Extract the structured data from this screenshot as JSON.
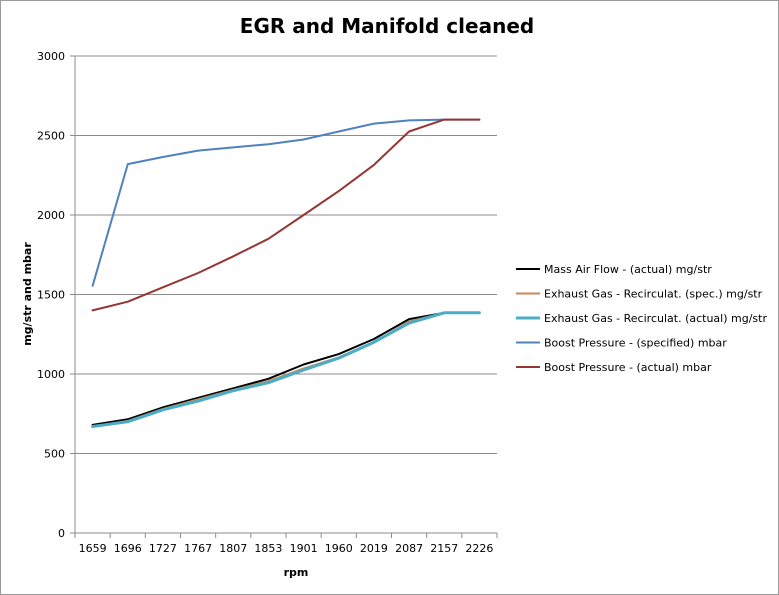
{
  "chart_data": {
    "type": "line",
    "title": "EGR and Manifold cleaned",
    "xlabel": "rpm",
    "ylabel": "mg/str and mbar",
    "categories": [
      "1659",
      "1696",
      "1727",
      "1767",
      "1807",
      "1853",
      "1901",
      "1960",
      "2019",
      "2087",
      "2157",
      "2226"
    ],
    "ylim": [
      0,
      3000
    ],
    "yticks": [
      0,
      500,
      1000,
      1500,
      2000,
      2500,
      3000
    ],
    "grid": "horizontal",
    "legend_position": "right",
    "series": [
      {
        "name": "Mass Air Flow - (actual)  mg/str",
        "color": "#000000",
        "values": [
          680,
          715,
          790,
          850,
          910,
          970,
          1060,
          1125,
          1220,
          1345,
          1385,
          1385
        ]
      },
      {
        "name": "Exhaust Gas - Recirculat. (spec.)  mg/str",
        "color": "#C8885A",
        "values": [
          670,
          705,
          780,
          840,
          900,
          955,
          1035,
          1105,
          1200,
          1330,
          1385,
          1385
        ]
      },
      {
        "name": "Exhaust Gas - Recirculat. (actual)  mg/str",
        "color": "#4BACC6",
        "values": [
          670,
          700,
          775,
          830,
          895,
          945,
          1025,
          1100,
          1200,
          1320,
          1385,
          1385
        ]
      },
      {
        "name": "Boost Pressure - (specified)  mbar",
        "color": "#4F81BD",
        "values": [
          1555,
          2320,
          2365,
          2405,
          2425,
          2445,
          2475,
          2525,
          2575,
          2595,
          2600,
          2600
        ]
      },
      {
        "name": "Boost Pressure - (actual)  mbar",
        "color": "#943634",
        "values": [
          1400,
          1455,
          1545,
          1635,
          1740,
          1850,
          2000,
          2150,
          2315,
          2525,
          2600,
          2600
        ]
      }
    ]
  }
}
